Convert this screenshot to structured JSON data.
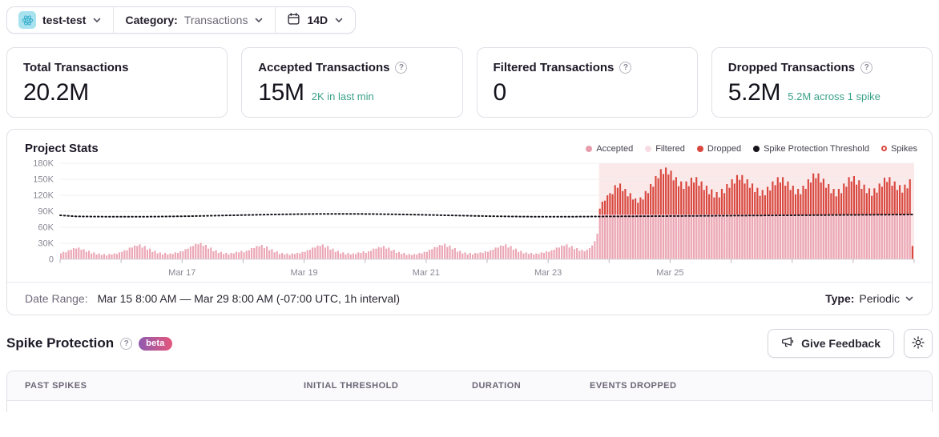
{
  "header": {
    "project": "test-test",
    "category_label": "Category:",
    "category_value": "Transactions",
    "period": "14D"
  },
  "icons": {
    "project_platform": "atom",
    "calendar": "calendar",
    "help": "question-circle",
    "feedback": "megaphone",
    "settings": "gear",
    "chevron": "chevron-down"
  },
  "cards": [
    {
      "title": "Total Transactions",
      "value": "20.2M"
    },
    {
      "title": "Accepted Transactions",
      "value": "15M",
      "subtitle": "2K in last min"
    },
    {
      "title": "Filtered Transactions",
      "value": "0"
    },
    {
      "title": "Dropped Transactions",
      "value": "5.2M",
      "subtitle": "5.2M across 1 spike"
    }
  ],
  "subtitle_color": "#3ba189",
  "chart_card": {
    "title": "Project Stats",
    "legend": [
      {
        "label": "Accepted",
        "color": "#e79cab",
        "type": "dot"
      },
      {
        "label": "Filtered",
        "color": "#f7dde3",
        "type": "dot"
      },
      {
        "label": "Dropped",
        "color": "#d9483f",
        "type": "dot"
      },
      {
        "label": "Spike Protection Threshold",
        "color": "#17141b",
        "type": "dot"
      },
      {
        "label": "Spikes",
        "color": "#d9483f",
        "type": "ring"
      }
    ],
    "date_range_label": "Date Range:",
    "date_range_value": "Mar 15 8:00 AM — Mar 29 8:00 AM (-07:00 UTC, 1h interval)",
    "type_label": "Type:",
    "type_value": "Periodic"
  },
  "chart_data": {
    "type": "bar",
    "subtype": "stacked-hourly",
    "title": "Project Stats",
    "unit": "K transactions per 1h bucket",
    "interval_hours": 1,
    "x_start": "Mar 15 8:00 AM",
    "x_end": "Mar 29 8:00 AM",
    "x_tick_labels": [
      "Mar 17",
      "Mar 19",
      "Mar 21",
      "Mar 23",
      "Mar 25"
    ],
    "y_tick_labels": [
      "0",
      "30K",
      "60K",
      "90K",
      "120K",
      "150K",
      "180K"
    ],
    "ylim_k": [
      0,
      180
    ],
    "grid": true,
    "legend_position": "top-right",
    "threshold_k": 84,
    "spike_start_hour": 212,
    "colors": {
      "accepted": "#eba7b5",
      "dropped": "#d9483f",
      "spike_bg": "#fbe9ea",
      "threshold": "#17141b",
      "axis_text": "#8a8794",
      "axis_line": "#d9d7de",
      "grid_line": "#f0eff2"
    },
    "accepted_pre_spike_k": [
      11,
      14,
      13,
      17,
      18,
      21,
      20,
      22,
      18,
      19,
      14,
      16,
      11,
      13,
      9,
      11,
      8,
      10,
      7,
      10,
      9,
      11,
      10,
      13,
      14,
      17,
      17,
      22,
      22,
      26,
      25,
      28,
      22,
      25,
      18,
      20,
      14,
      16,
      11,
      13,
      9,
      12,
      9,
      11,
      10,
      13,
      12,
      15,
      15,
      19,
      20,
      24,
      25,
      29,
      28,
      31,
      25,
      27,
      20,
      22,
      15,
      17,
      12,
      14,
      10,
      12,
      9,
      12,
      11,
      14,
      13,
      16,
      13,
      16,
      17,
      21,
      21,
      25,
      24,
      27,
      21,
      24,
      17,
      19,
      13,
      15,
      10,
      12,
      9,
      11,
      8,
      11,
      10,
      12,
      11,
      14,
      14,
      17,
      18,
      22,
      22,
      26,
      25,
      28,
      22,
      25,
      18,
      20,
      14,
      16,
      11,
      13,
      9,
      12,
      9,
      11,
      10,
      13,
      12,
      15,
      12,
      15,
      16,
      20,
      20,
      23,
      22,
      25,
      20,
      22,
      16,
      18,
      12,
      14,
      10,
      12,
      8,
      10,
      8,
      10,
      9,
      12,
      11,
      14,
      14,
      18,
      19,
      23,
      23,
      27,
      26,
      29,
      23,
      26,
      19,
      21,
      14,
      16,
      11,
      13,
      9,
      12,
      9,
      12,
      11,
      13,
      12,
      15,
      14,
      17,
      18,
      22,
      22,
      26,
      25,
      28,
      22,
      25,
      18,
      20,
      14,
      16,
      11,
      13,
      10,
      12,
      9,
      11,
      10,
      13,
      12,
      15,
      14,
      17,
      18,
      22,
      22,
      26,
      25,
      28,
      22,
      25,
      19,
      21,
      16,
      18,
      15,
      18,
      21,
      26,
      34,
      48
    ],
    "spike_accepted_cap_k": 84,
    "spike_dropped_overflow_k": [
      11,
      24,
      26,
      36,
      40,
      38,
      55,
      50,
      58,
      44,
      48,
      34,
      40,
      28,
      30,
      22,
      32,
      28,
      44,
      40,
      57,
      52,
      72,
      68,
      85,
      76,
      88,
      75,
      82,
      64,
      70,
      53,
      62,
      48,
      62,
      53,
      69,
      60,
      70,
      54,
      62,
      46,
      54,
      38,
      47,
      32,
      42,
      32,
      48,
      40,
      57,
      50,
      66,
      58,
      74,
      65,
      74,
      58,
      66,
      50,
      58,
      42,
      50,
      35,
      46,
      36,
      52,
      45,
      62,
      55,
      70,
      60,
      70,
      54,
      62,
      46,
      54,
      38,
      48,
      38,
      54,
      48,
      66,
      60,
      77,
      68,
      77,
      60,
      67,
      50,
      57,
      40,
      48,
      34,
      48,
      40,
      58,
      52,
      70,
      62,
      72,
      56,
      64,
      48,
      56,
      40,
      49,
      35,
      49,
      41,
      58,
      52,
      69,
      61,
      70,
      54,
      62,
      46,
      55,
      41,
      56,
      49,
      66
    ],
    "final_partial_bar": {
      "accepted_k": 0,
      "dropped_k": 25
    }
  },
  "spike_section": {
    "title": "Spike Protection",
    "beta_badge": "beta",
    "feedback_button": "Give Feedback"
  },
  "table": {
    "headers": [
      "Past Spikes",
      "Initial Threshold",
      "Duration",
      "Events Dropped"
    ]
  }
}
